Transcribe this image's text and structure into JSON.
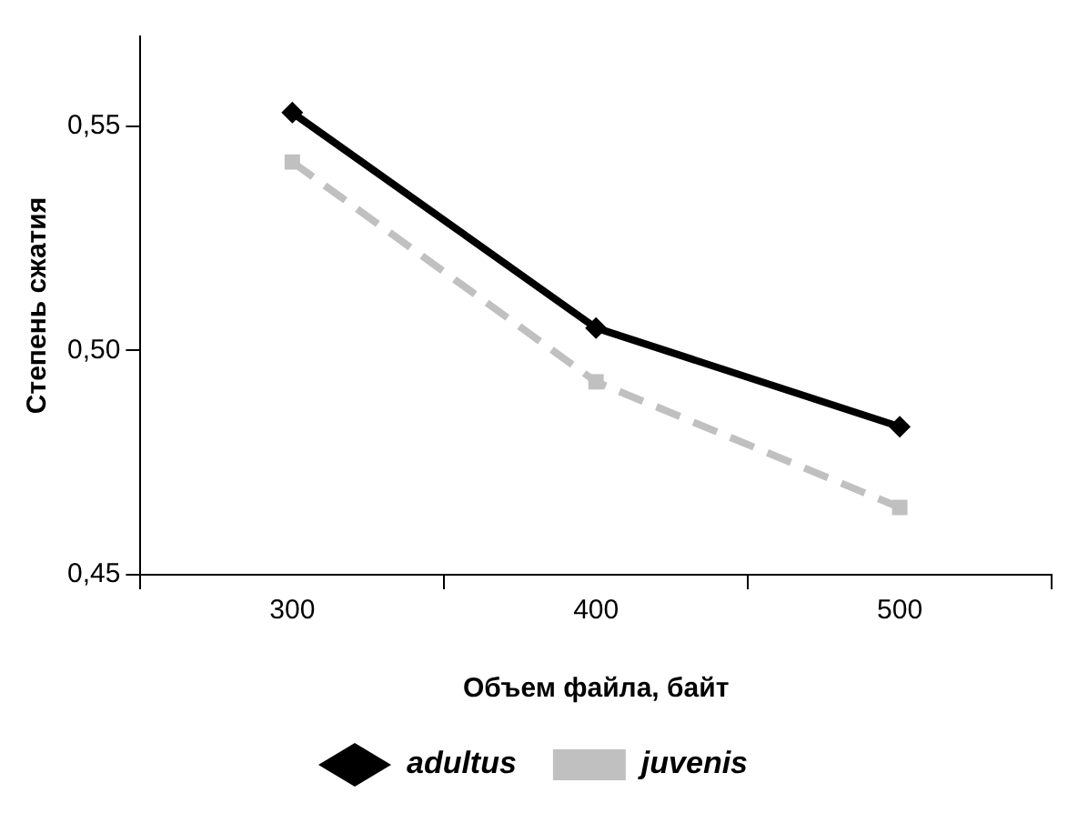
{
  "chart_data": {
    "type": "line",
    "xlabel": "Объем файла, байт",
    "ylabel": "Степень сжатия",
    "categories": [
      "300",
      "400",
      "500"
    ],
    "series": [
      {
        "name": "adultus",
        "color": "#000000",
        "values": [
          0.553,
          0.505,
          0.483
        ],
        "marker": "diamond",
        "line_style": "solid"
      },
      {
        "name": "juvenis",
        "color": "#c0c0c0",
        "values": [
          0.542,
          0.493,
          0.465
        ],
        "marker": "square",
        "line_style": "dashed"
      }
    ],
    "ylim": [
      0.45,
      0.57
    ],
    "yticks": [
      {
        "value": 0.45,
        "label": "0,45"
      },
      {
        "value": 0.5,
        "label": "0,50"
      },
      {
        "value": 0.55,
        "label": "0,55"
      }
    ],
    "grid": false,
    "legend": "bottom"
  }
}
